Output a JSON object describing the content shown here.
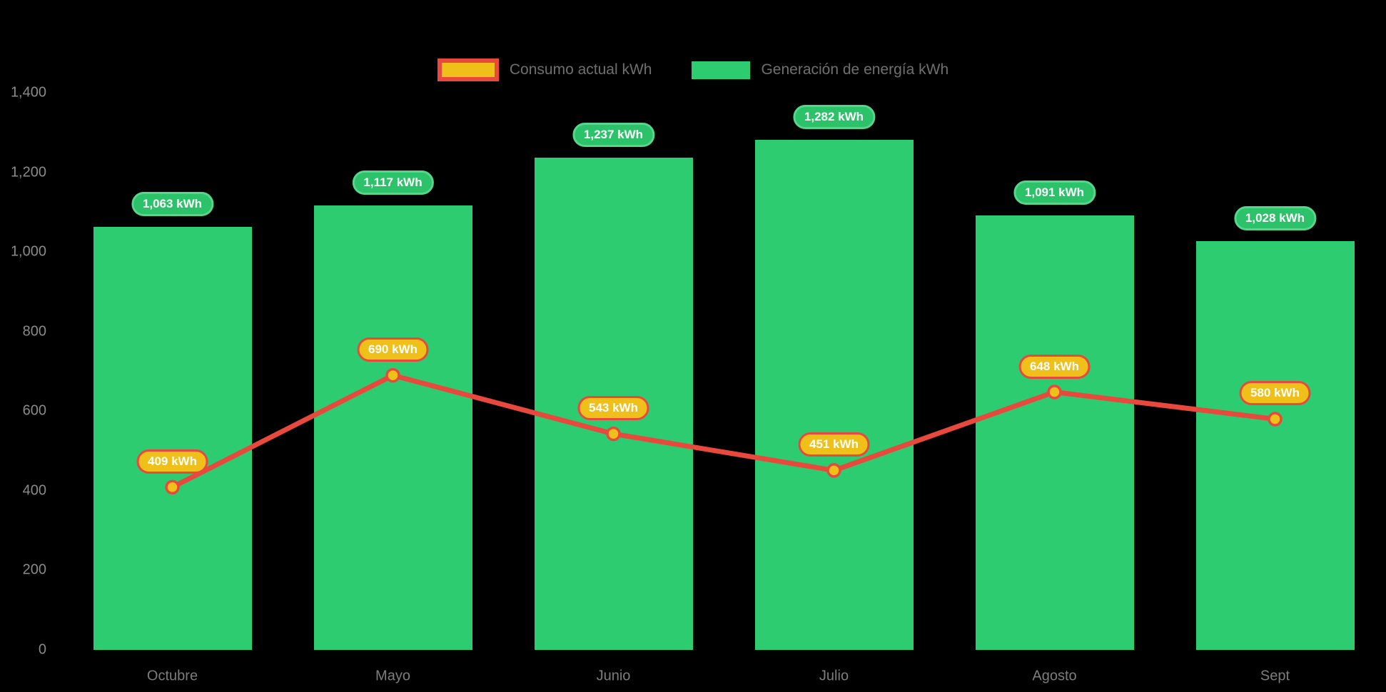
{
  "legend": {
    "items": [
      {
        "id": "consumo",
        "label": "Consumo actual kWh",
        "swatch_fill": "#efc019",
        "swatch_border": "#e8493c"
      },
      {
        "id": "generacion",
        "label": "Generación de energía kWh",
        "swatch_fill": "#2ecc71",
        "swatch_border": "#2ecc71"
      }
    ]
  },
  "colors": {
    "background": "#000000",
    "bar_green": "#2ecc71",
    "green_pill_fill": "#2bc26a",
    "green_pill_border": "#56d68b",
    "line_red": "#e8493c",
    "marker_gold": "#efc019",
    "pill_gold_fill": "#efc019",
    "pill_gold_border": "#e8493c",
    "axis_text": "#8a8a8a",
    "label_text_white": "#ffffff"
  },
  "chart_data": {
    "type": "bar+line",
    "title": "",
    "xlabel": "",
    "ylabel": "",
    "categories": [
      "Octubre",
      "Mayo",
      "Junio",
      "Julio",
      "Agosto",
      "Sept"
    ],
    "series": [
      {
        "name": "Generación de energía kWh",
        "type": "bar",
        "color": "#2ecc71",
        "values": [
          1063,
          1117,
          1237,
          1282,
          1091,
          1028
        ],
        "data_labels": [
          "1,063 kWh",
          "1,117 kWh",
          "1,237 kWh",
          "1,282 kWh",
          "1,091 kWh",
          "1,028 kWh"
        ]
      },
      {
        "name": "Consumo actual kWh",
        "type": "line",
        "color": "#e8493c",
        "marker_fill": "#efc019",
        "values": [
          409,
          690,
          543,
          451,
          648,
          580
        ],
        "data_labels": [
          "409 kWh",
          "690 kWh",
          "543 kWh",
          "451 kWh",
          "648 kWh",
          "580 kWh"
        ]
      }
    ],
    "y_axis": {
      "min": 0,
      "max": 1400,
      "step": 200,
      "ticks": [
        {
          "value": 0,
          "label": "0"
        },
        {
          "value": 200,
          "label": "200"
        },
        {
          "value": 400,
          "label": "400"
        },
        {
          "value": 600,
          "label": "600"
        },
        {
          "value": 800,
          "label": "800"
        },
        {
          "value": 1000,
          "label": "1,000"
        },
        {
          "value": 1200,
          "label": "1,200"
        },
        {
          "value": 1400,
          "label": "1,400"
        }
      ]
    },
    "grid": false,
    "legend_position": "top-center"
  }
}
